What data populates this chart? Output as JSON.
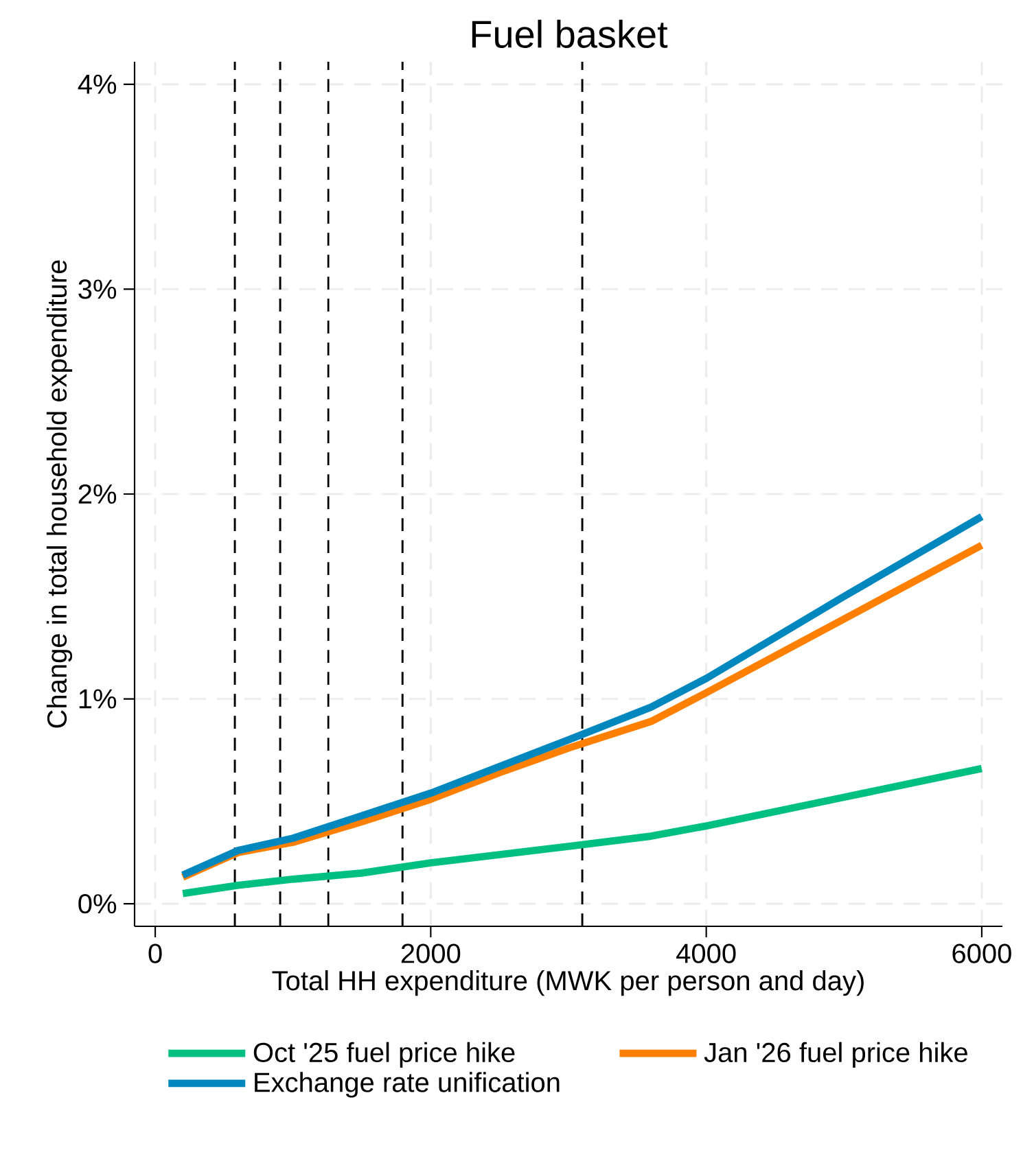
{
  "chart_data": {
    "type": "line",
    "title": "Fuel basket",
    "xlabel": "Total HH expenditure (MWK per person and day)",
    "ylabel": "Change in total household expenditure",
    "xlim": [
      -150,
      6150
    ],
    "xticks": [
      0,
      2000,
      4000,
      6000
    ],
    "ylim": [
      -0.11,
      4.11
    ],
    "yticks": [
      {
        "value": 0,
        "label": "0%"
      },
      {
        "value": 1,
        "label": "1%"
      },
      {
        "value": 2,
        "label": "2%"
      },
      {
        "value": 3,
        "label": "3%"
      },
      {
        "value": 4,
        "label": "4%"
      }
    ],
    "grid": true,
    "legend": "bottom",
    "line_style": "solid",
    "marker": "none",
    "ref_lines": [
      {
        "axis": "x",
        "value": 578,
        "color": "#000000",
        "line_style": "dashed"
      },
      {
        "axis": "x",
        "value": 907,
        "color": "#000000",
        "line_style": "dashed"
      },
      {
        "axis": "x",
        "value": 1256,
        "color": "#000000",
        "line_style": "dashed"
      },
      {
        "axis": "x",
        "value": 1795,
        "color": "#000000",
        "line_style": "dashed"
      },
      {
        "axis": "x",
        "value": 3100,
        "color": "#000000",
        "line_style": "dashed"
      }
    ],
    "series": [
      {
        "name": "Oct '25 fuel price hike",
        "color": "#00c081",
        "x": [
          200,
          600,
          1000,
          1500,
          2000,
          2500,
          3000,
          3600,
          4000,
          5000,
          6000
        ],
        "values": [
          0.05,
          0.09,
          0.12,
          0.15,
          0.2,
          0.24,
          0.28,
          0.33,
          0.38,
          0.52,
          0.66
        ]
      },
      {
        "name": "Jan '26 fuel price hike",
        "color": "#ff8000",
        "x": [
          200,
          600,
          1000,
          1500,
          2000,
          2500,
          3000,
          3600,
          4000,
          5000,
          6000
        ],
        "values": [
          0.13,
          0.25,
          0.3,
          0.4,
          0.51,
          0.64,
          0.76,
          0.89,
          1.03,
          1.39,
          1.75
        ]
      },
      {
        "name": "Exchange rate unification",
        "color": "#0087bd",
        "x": [
          200,
          600,
          1000,
          1500,
          2000,
          2500,
          3000,
          3600,
          4000,
          5000,
          6000
        ],
        "values": [
          0.14,
          0.26,
          0.32,
          0.43,
          0.54,
          0.67,
          0.8,
          0.96,
          1.1,
          1.5,
          1.89
        ]
      }
    ]
  }
}
